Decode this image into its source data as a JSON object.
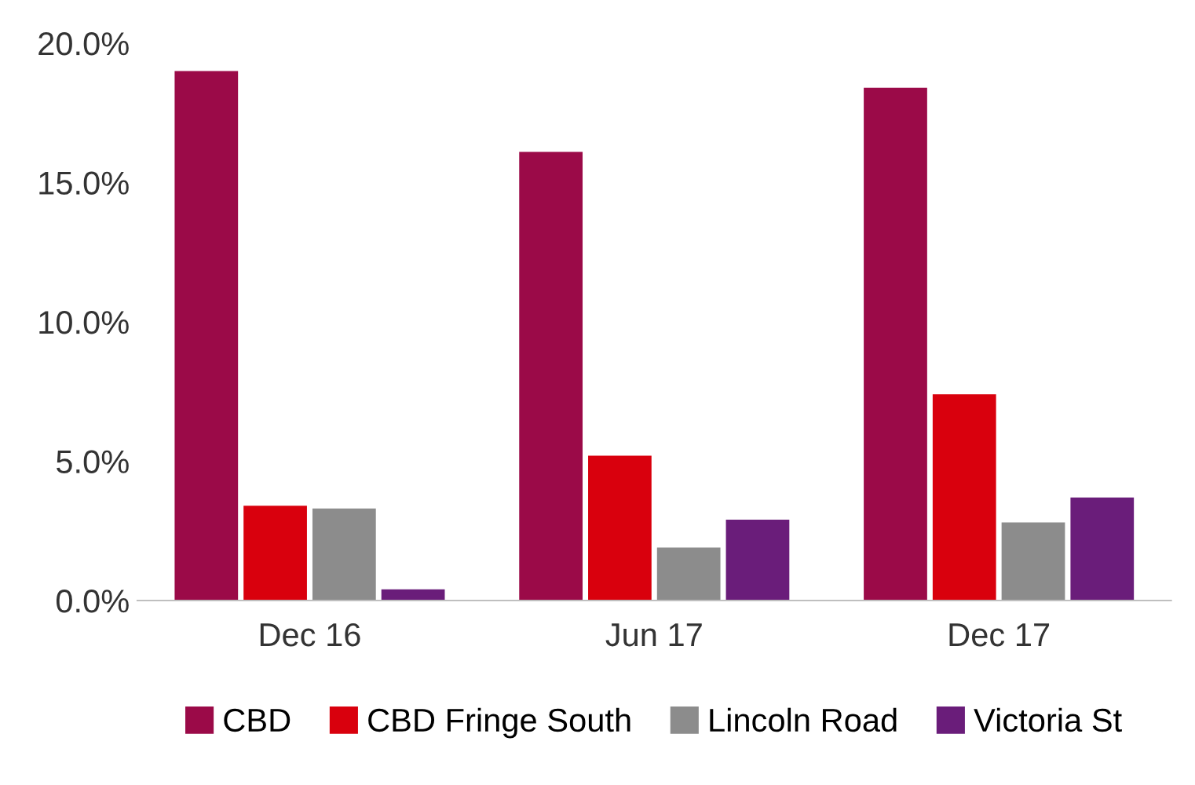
{
  "chart_data": {
    "type": "bar",
    "categories": [
      "Dec 16",
      "Jun 17",
      "Dec 17"
    ],
    "series": [
      {
        "name": "CBD",
        "color": "#9b0a48",
        "values": [
          19.0,
          16.1,
          18.4
        ]
      },
      {
        "name": "CBD Fringe South",
        "color": "#d9000d",
        "values": [
          3.4,
          5.2,
          7.4
        ]
      },
      {
        "name": "Lincoln Road",
        "color": "#8c8c8c",
        "values": [
          3.3,
          1.9,
          2.8
        ]
      },
      {
        "name": "Victoria St",
        "color": "#6a1d7a",
        "values": [
          0.4,
          2.9,
          3.7
        ]
      }
    ],
    "ylim": [
      0,
      20
    ],
    "yticks": [
      {
        "value": 0,
        "label": "0.0%"
      },
      {
        "value": 5,
        "label": "5.0%"
      },
      {
        "value": 10,
        "label": "10.0%"
      },
      {
        "value": 15,
        "label": "15.0%"
      },
      {
        "value": 20,
        "label": "20.0%"
      }
    ],
    "grid": false,
    "legend": "bottom"
  }
}
